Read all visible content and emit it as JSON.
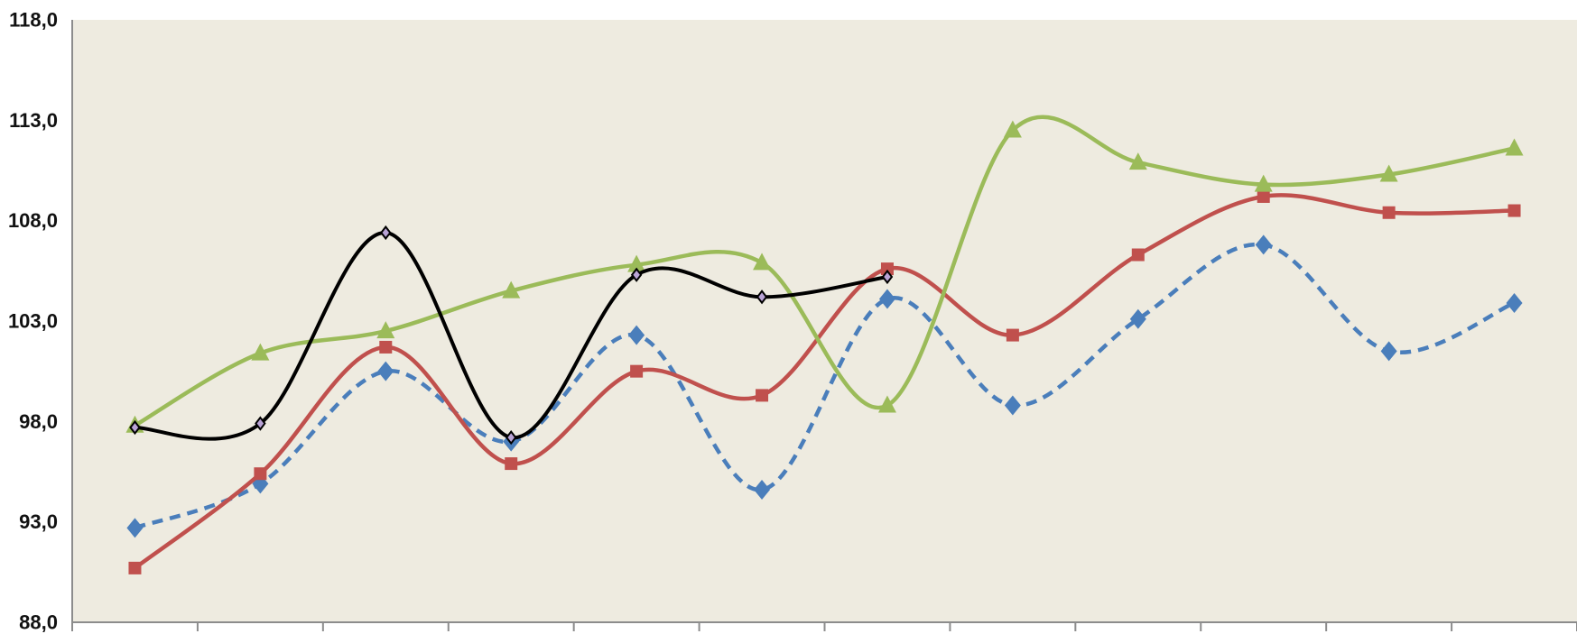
{
  "chart_data": {
    "type": "line",
    "title": "",
    "xlabel": "",
    "ylabel": "",
    "ylim": [
      88,
      118
    ],
    "yticks": [
      "88,0",
      "93,0",
      "98,0",
      "103,0",
      "108,0",
      "113,0",
      "118,0"
    ],
    "ytick_values": [
      88,
      93,
      98,
      103,
      108,
      113,
      118
    ],
    "x_count": 12,
    "grid": false,
    "legend": "none",
    "plot_background": "#eeebe0",
    "series": [
      {
        "key": "blue-dashed",
        "color": "#4a7ebb",
        "dash": true,
        "marker": "diamond",
        "values": [
          92.7,
          94.9,
          100.5,
          97.0,
          102.3,
          94.6,
          104.1,
          98.8,
          103.1,
          106.8,
          101.5,
          103.9
        ]
      },
      {
        "key": "red",
        "color": "#c0504d",
        "dash": false,
        "marker": "square",
        "values": [
          90.7,
          95.4,
          101.7,
          95.9,
          100.5,
          99.3,
          105.6,
          102.3,
          106.3,
          109.2,
          108.4,
          108.5
        ]
      },
      {
        "key": "green",
        "color": "#9bbb59",
        "dash": false,
        "marker": "triangle",
        "values": [
          97.8,
          101.4,
          102.5,
          104.5,
          105.8,
          105.9,
          98.8,
          112.5,
          110.9,
          109.8,
          110.3,
          111.6
        ]
      },
      {
        "key": "black",
        "color": "#000000",
        "dash": false,
        "marker": "small-diamond",
        "values": [
          97.7,
          97.9,
          107.4,
          97.2,
          105.3,
          104.2,
          105.2,
          null,
          null,
          null,
          null,
          null
        ]
      }
    ]
  }
}
